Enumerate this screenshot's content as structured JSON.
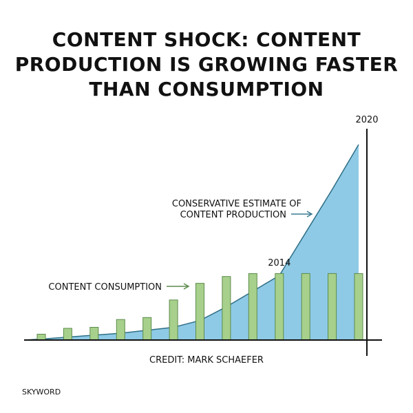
{
  "chart_data": {
    "type": "area",
    "title_lines": [
      "CONTENT SHOCK: CONTENT",
      "PRODUCTION IS GROWING FASTER",
      "THAN CONSUMPTION"
    ],
    "credit": "CREDIT: MARK SCHAEFER",
    "brand": "SKYWORD",
    "marked_years": [
      {
        "label": "2014",
        "index": 9
      },
      {
        "label": "2020",
        "index": 13
      }
    ],
    "annotations": {
      "production": [
        "CONSERVATIVE ESTIMATE OF",
        "CONTENT PRODUCTION"
      ],
      "consumption": "CONTENT CONSUMPTION"
    },
    "ylim": [
      0,
      100
    ],
    "series": [
      {
        "key": "production",
        "values": [
          0.5,
          1.5,
          2.5,
          3.5,
          5,
          6.5,
          10,
          17,
          25,
          33,
          55,
          77,
          100
        ]
      },
      {
        "key": "consumption",
        "values": [
          3,
          6,
          6.5,
          10.5,
          11.5,
          20.5,
          29,
          32.5,
          34,
          34,
          34,
          34,
          34
        ]
      }
    ],
    "colors": {
      "production": "#8ecae6",
      "production_line": "#2f6f86",
      "consumption": "#a7d08c",
      "consumption_stroke": "#5b8a4a",
      "axis": "#111111",
      "arrow_production": "#3a7a90",
      "arrow_consumption": "#5b8a4a"
    },
    "grid": false
  }
}
